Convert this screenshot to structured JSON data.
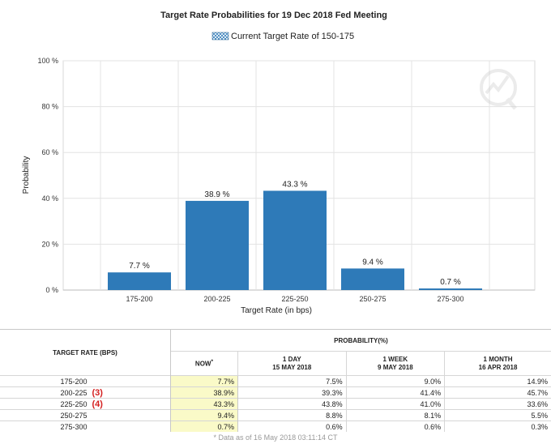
{
  "chart_data": {
    "type": "bar",
    "title": "Target Rate Probabilities for 19 Dec 2018 Fed Meeting",
    "legend": {
      "label": "Current Target Rate of 150-175",
      "placement": "top-center"
    },
    "categories": [
      "175-200",
      "200-225",
      "225-250",
      "250-275",
      "275-300"
    ],
    "values": [
      7.7,
      38.9,
      43.3,
      9.4,
      0.7
    ],
    "data_labels": [
      "7.7 %",
      "38.9 %",
      "43.3 %",
      "9.4 %",
      "0.7 %"
    ],
    "xlabel": "Target Rate (in bps)",
    "ylabel": "Probability",
    "ylim": [
      0,
      100
    ],
    "yticks": [
      0,
      20,
      40,
      60,
      80,
      100
    ],
    "ytick_labels": [
      "0 %",
      "20 %",
      "40 %",
      "60 %",
      "80 %",
      "100 %"
    ],
    "grid": true,
    "bar_color": "#2e7ab8"
  },
  "table": {
    "header_rate": "TARGET RATE (BPS)",
    "header_probability": "PROBABILITY(%)",
    "columns": [
      {
        "line1": "NOW",
        "line2": "",
        "marker": "*"
      },
      {
        "line1": "1 DAY",
        "line2": "15 MAY 2018"
      },
      {
        "line1": "1 WEEK",
        "line2": "9 MAY 2018"
      },
      {
        "line1": "1 MONTH",
        "line2": "16 APR 2018"
      }
    ],
    "rows": [
      {
        "rate": "175-200",
        "marker": "",
        "now": "7.7%",
        "day": "7.5%",
        "week": "9.0%",
        "month": "14.9%"
      },
      {
        "rate": "200-225",
        "marker": "(3)",
        "now": "38.9%",
        "day": "39.3%",
        "week": "41.4%",
        "month": "45.7%"
      },
      {
        "rate": "225-250",
        "marker": "(4)",
        "now": "43.3%",
        "day": "43.8%",
        "week": "41.0%",
        "month": "33.6%"
      },
      {
        "rate": "250-275",
        "marker": "",
        "now": "9.4%",
        "day": "8.8%",
        "week": "8.1%",
        "month": "5.5%"
      },
      {
        "rate": "275-300",
        "marker": "",
        "now": "0.7%",
        "day": "0.6%",
        "week": "0.6%",
        "month": "0.3%"
      }
    ],
    "footnote": "* Data as of 16 May 2018 03:11:14 CT"
  }
}
